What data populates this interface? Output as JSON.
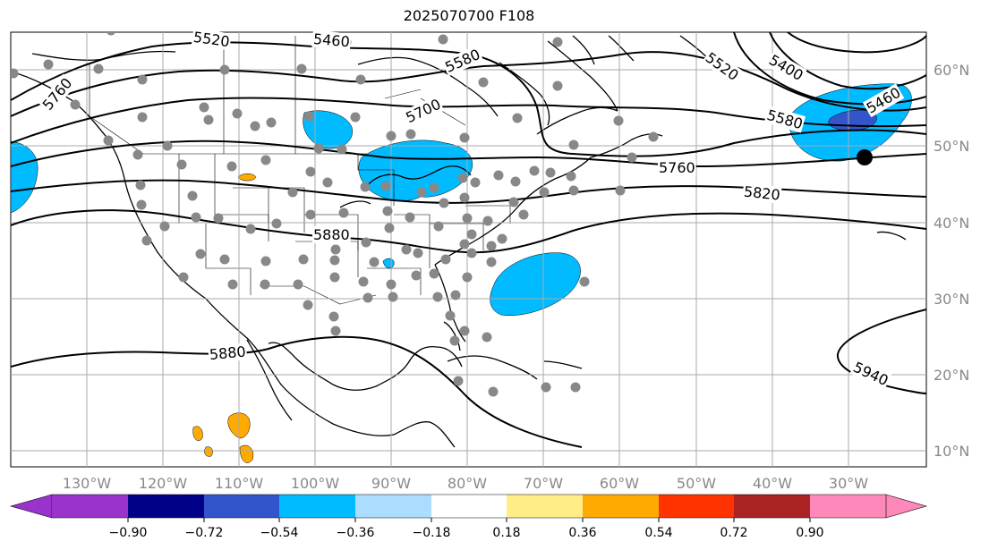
{
  "title": "2025070700 F108",
  "map": {
    "longitude_ticks": [
      "130°W",
      "120°W",
      "110°W",
      "100°W",
      "90°W",
      "80°W",
      "70°W",
      "60°W",
      "50°W",
      "40°W",
      "30°W"
    ],
    "latitude_ticks": [
      "60°N",
      "50°N",
      "40°N",
      "30°N",
      "20°N",
      "10°N"
    ],
    "contour_labels": [
      "5520",
      "5460",
      "5580",
      "5700",
      "5760",
      "5880",
      "5820",
      "5400",
      "5460",
      "5580",
      "5520",
      "5880",
      "5940",
      "5760"
    ],
    "colors": {
      "contour": "#000000",
      "grid": "#aaaaaa",
      "station_dot": "#888888",
      "marker": "#000000"
    }
  },
  "colorbar": {
    "colors": [
      "#9933cc",
      "#000088",
      "#3355cc",
      "#00bbff",
      "#aaddff",
      "#ffffff",
      "#ffee88",
      "#ffaa00",
      "#ff3300",
      "#aa2222",
      "#ff88bb"
    ],
    "tick_labels": [
      "−0.90",
      "−0.72",
      "−0.54",
      "−0.36",
      "−0.18",
      "0.18",
      "0.36",
      "0.54",
      "0.72",
      "0.90"
    ]
  }
}
